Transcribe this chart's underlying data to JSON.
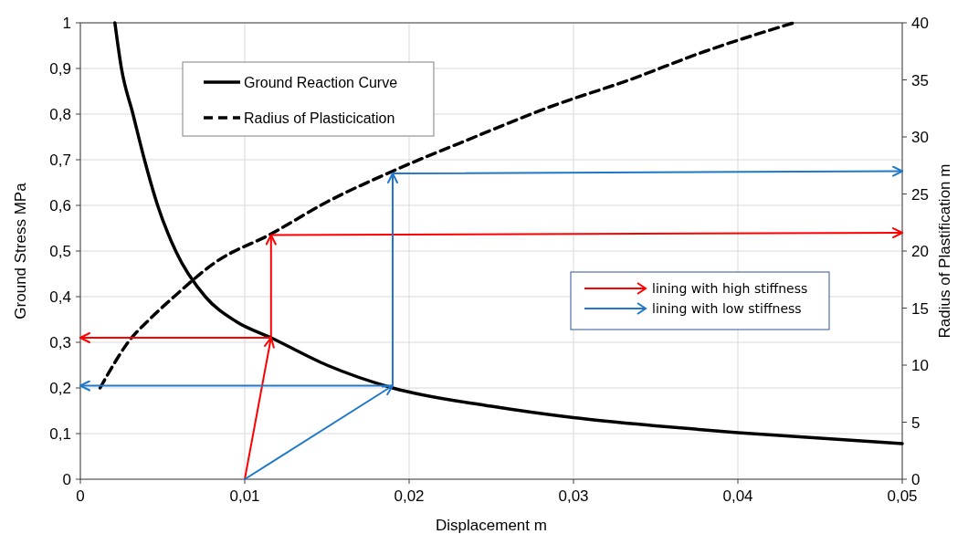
{
  "chart_data": {
    "type": "line",
    "xlabel": "Displacement m",
    "ylabel": "Ground Stress MPa",
    "y2label": "Radius of Plastification m",
    "xlim": [
      0,
      0.05
    ],
    "xticks": [
      0,
      {
        "value": 0.01,
        "label": "0,01"
      },
      {
        "value": 0.02,
        "label": "0,02"
      },
      {
        "value": 0.03,
        "label": "0,03"
      },
      {
        "value": 0.04,
        "label": "0,04"
      },
      {
        "value": 0.05,
        "label": "0,05"
      }
    ],
    "ylim": [
      0,
      1
    ],
    "yticks": [
      0,
      {
        "value": 0.1,
        "label": "0,1"
      },
      {
        "value": 0.2,
        "label": "0,2"
      },
      {
        "value": 0.3,
        "label": "0,3"
      },
      {
        "value": 0.4,
        "label": "0,4"
      },
      {
        "value": 0.5,
        "label": "0,5"
      },
      {
        "value": 0.6,
        "label": "0,6"
      },
      {
        "value": 0.7,
        "label": "0,7"
      },
      {
        "value": 0.8,
        "label": "0,8"
      },
      {
        "value": 0.9,
        "label": "0,9"
      },
      1
    ],
    "y2lim": [
      0,
      40
    ],
    "y2ticks": [
      0,
      5,
      10,
      15,
      20,
      25,
      30,
      35,
      40
    ],
    "grid": true,
    "legend": "top left",
    "series": [
      {
        "name": "Ground Reaction Curve",
        "color": "#000000",
        "line_style": "solid",
        "x": [
          0.0021,
          0.0025,
          0.0032,
          0.0039,
          0.0047,
          0.0058,
          0.0076,
          0.0095,
          0.0116,
          0.015,
          0.019,
          0.025,
          0.03,
          0.035,
          0.04,
          0.045,
          0.05
        ],
        "values": [
          1,
          0.9,
          0.8,
          0.7,
          0.6,
          0.5,
          0.4,
          0.345,
          0.31,
          0.25,
          0.2,
          0.16,
          0.135,
          0.117,
          0.102,
          0.09,
          0.078
        ]
      },
      {
        "name": "Radius of Plasticication",
        "color": "#000000",
        "line_style": "dashed",
        "axis": "y2",
        "x": [
          0.0012,
          0.002,
          0.0029,
          0.0042,
          0.0057,
          0.0082,
          0.0116,
          0.015,
          0.019,
          0.024,
          0.0285,
          0.0334,
          0.038,
          0.0434
        ],
        "values": [
          8,
          10,
          12,
          14,
          16,
          19,
          21.5,
          24.3,
          27,
          30,
          32.6,
          35,
          37.5,
          40
        ]
      },
      {
        "name": "lining with high stiffness",
        "color": "#ff0000",
        "line_style": "solid",
        "x": [
          0.01,
          0.0116,
          null,
          0.0116,
          0.0116,
          null,
          0.0116,
          0.05,
          null,
          0.0116,
          0
        ],
        "values": [
          0,
          0.31,
          null,
          0.31,
          0.535,
          null,
          0.535,
          0.54,
          null,
          0.31,
          0.31
        ]
      },
      {
        "name": "lining with low stiffness",
        "color": "#1f78c8",
        "line_style": "solid",
        "x": [
          0.01,
          0.019,
          null,
          0.019,
          0.019,
          null,
          0.019,
          0.05,
          null,
          0.019,
          0
        ],
        "values": [
          0,
          0.205,
          null,
          0.205,
          0.67,
          null,
          0.67,
          0.675,
          null,
          0.205,
          0.205
        ]
      }
    ]
  }
}
